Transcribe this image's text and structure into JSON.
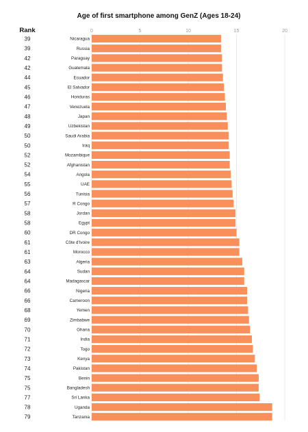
{
  "chart_data": {
    "type": "bar",
    "orientation": "horizontal",
    "title": "Age of first smartphone among GenZ (Ages 18-24)",
    "rank_header": "Rank",
    "xlim": [
      0,
      20
    ],
    "xticks": [
      0,
      5,
      10,
      15,
      20
    ],
    "grid": true,
    "bar_color": "#f98f5a",
    "categories": [
      "Nicaragua",
      "Russia",
      "Paraguay",
      "Guatemala",
      "Ecuador",
      "El Salvador",
      "Honduras",
      "Venezuela",
      "Japan",
      "Uzbekistan",
      "Saudi Arabia",
      "Iraq",
      "Mozambique",
      "Afghanistan",
      "Angola",
      "UAE",
      "Tunisia",
      "R Congo",
      "Jordan",
      "Egypt",
      "DR Congo",
      "Côte d'Ivoire",
      "Morocco",
      "Algeria",
      "Sudan",
      "Madagascar",
      "Nigeria",
      "Cameroon",
      "Yemen",
      "Zimbabwe",
      "Ghana",
      "India",
      "Togo",
      "Kenya",
      "Pakistan",
      "Benin",
      "Bangladesh",
      "Sri Lanka",
      "Uganda",
      "Tanzania"
    ],
    "ranks": [
      "39",
      "39",
      "42",
      "42",
      "44",
      "45",
      "46",
      "47",
      "48",
      "49",
      "50",
      "50",
      "52",
      "52",
      "54",
      "55",
      "56",
      "57",
      "58",
      "58",
      "60",
      "61",
      "61",
      "63",
      "64",
      "64",
      "66",
      "66",
      "68",
      "69",
      "70",
      "71",
      "72",
      "73",
      "74",
      "75",
      "75",
      "77",
      "78",
      "79"
    ],
    "values": [
      13.4,
      13.4,
      13.5,
      13.5,
      13.6,
      13.7,
      13.8,
      13.9,
      14.0,
      14.1,
      14.2,
      14.2,
      14.3,
      14.3,
      14.4,
      14.5,
      14.6,
      14.7,
      14.9,
      14.9,
      15.0,
      15.3,
      15.3,
      15.6,
      15.8,
      15.8,
      16.1,
      16.1,
      16.2,
      16.3,
      16.4,
      16.6,
      16.7,
      16.9,
      17.1,
      17.3,
      17.3,
      17.4,
      18.7,
      18.7
    ]
  }
}
